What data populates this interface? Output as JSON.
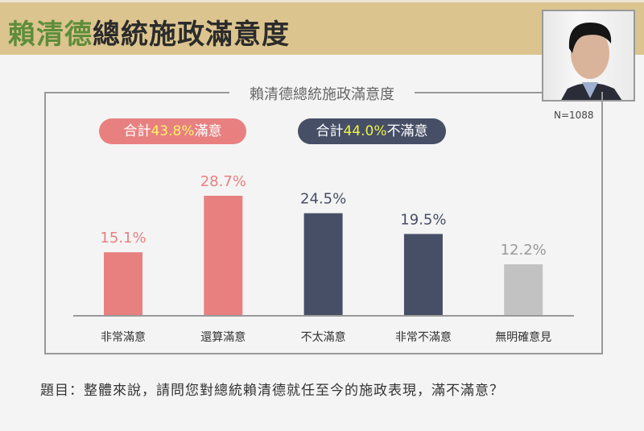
{
  "header": {
    "title_highlight": "賴清德",
    "title_rest": "總統施政滿意度"
  },
  "sample": "N=1088",
  "summary": {
    "satisfied": {
      "prefix": "合計",
      "value": "43.8%",
      "suffix": "滿意"
    },
    "dissatisfied": {
      "prefix": "合計",
      "value": "44.0%",
      "suffix": "不滿意"
    }
  },
  "question": "題目：整體來說，請問您對總統賴清德就任至今的施政表現，滿不滿意？",
  "colors": {
    "satisfied": "#e88080",
    "dissatisfied": "#464f66",
    "no_opinion": "#c2c2c2",
    "header": "#dcc48f",
    "title_green": "#5e8d3a"
  },
  "chart_data": {
    "type": "bar",
    "title": "賴清德總統施政滿意度",
    "categories": [
      "非常滿意",
      "還算滿意",
      "不太滿意",
      "非常不滿意",
      "無明確意見"
    ],
    "values": [
      15.1,
      28.7,
      24.5,
      19.5,
      12.2
    ],
    "labels": [
      "15.1%",
      "28.7%",
      "24.5%",
      "19.5%",
      "12.2%"
    ],
    "bar_colors": [
      "#e88080",
      "#e88080",
      "#464f66",
      "#464f66",
      "#c2c2c2"
    ],
    "label_colors": [
      "#e88080",
      "#e88080",
      "#464f66",
      "#464f66",
      "#999999"
    ],
    "ylim": [
      0,
      30
    ],
    "grid": false
  }
}
